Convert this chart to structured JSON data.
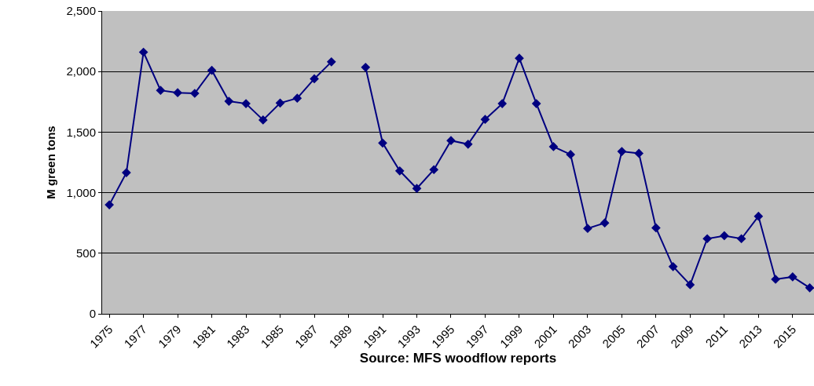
{
  "chart_data": {
    "type": "line",
    "xlabel": "Source: MFS woodflow reports",
    "ylabel": "M green tons",
    "categories": [
      "1975",
      null,
      "1977",
      null,
      "1979",
      null,
      "1981",
      null,
      "1983",
      null,
      "1985",
      null,
      "1987",
      null,
      "1989",
      null,
      "1991",
      null,
      "1993",
      null,
      "1995",
      null,
      "1997",
      null,
      "1999",
      null,
      "2001",
      null,
      "2003",
      null,
      "2005",
      null,
      "2007",
      null,
      "2009",
      null,
      "2011",
      null,
      "2013",
      null,
      "2015",
      null
    ],
    "series": [
      {
        "color": "#000080",
        "values": [
          900,
          1165,
          2160,
          1845,
          1825,
          1820,
          2010,
          1755,
          1735,
          1600,
          1740,
          1780,
          1940,
          2080,
          null,
          2035,
          1410,
          1180,
          1035,
          1190,
          1430,
          1400,
          1605,
          1735,
          2110,
          1735,
          1380,
          1315,
          705,
          750,
          1340,
          1325,
          710,
          390,
          240,
          620,
          645,
          620,
          805,
          285,
          305,
          215
        ]
      }
    ],
    "ylim": [
      0,
      2500
    ],
    "yticks": [
      {
        "value": 0,
        "label": "0"
      },
      {
        "value": 500,
        "label": "500"
      },
      {
        "value": 1000,
        "label": "1,000"
      },
      {
        "value": 1500,
        "label": "1,500"
      },
      {
        "value": 2000,
        "label": "2,000"
      },
      {
        "value": 2500,
        "label": "2,500"
      }
    ],
    "grid": "y",
    "marker": "diamond",
    "line_style": "solid"
  }
}
